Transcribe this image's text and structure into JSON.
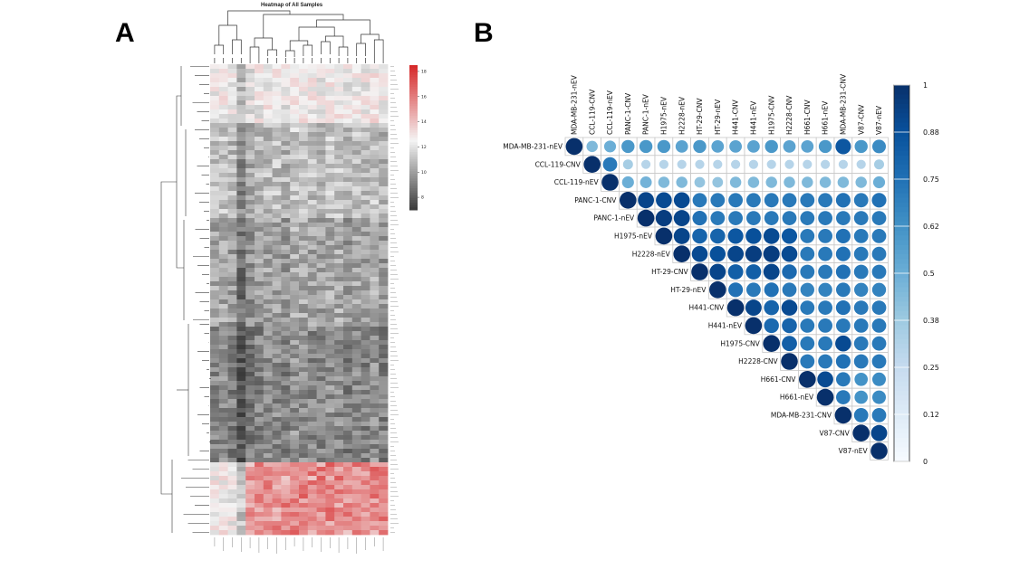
{
  "panel_labels": {
    "a": "A",
    "b": "B"
  },
  "chart_data": [
    {
      "type": "heatmap",
      "title": "Heatmap of All Samples",
      "colorbar": {
        "ticks": [
          8,
          10,
          12,
          14,
          16,
          18
        ],
        "range": [
          7,
          18.5
        ],
        "colors": {
          "low": "#3a3a3a",
          "mid": "#f4f4f4",
          "high": "#d62728"
        }
      },
      "columns": 20,
      "dendrogram": {
        "column": true,
        "row": true
      },
      "column_labels_legible": false,
      "row_labels_legible": false
    },
    {
      "type": "heatmap",
      "subtype": "correlation-upper-triangle",
      "labels": [
        "MDA-MB-231-nEV",
        "CCL-119-CNV",
        "CCL-119-nEV",
        "PANC-1-CNV",
        "PANC-1-nEV",
        "H1975-nEV",
        "H2228-nEV",
        "HT-29-CNV",
        "HT-29-nEV",
        "H441-CNV",
        "H441-nEV",
        "H1975-CNV",
        "H2228-CNV",
        "H661-CNV",
        "H661-nEV",
        "MDA-MB-231-CNV",
        "V87-CNV",
        "V87-nEV"
      ],
      "colorbar": {
        "ticks": [
          "0",
          "0.12",
          "0.25",
          "0.38",
          "0.5",
          "0.62",
          "0.75",
          "0.88",
          "1"
        ],
        "range": [
          0,
          1
        ]
      },
      "values": [
        [
          1.0,
          0.45,
          0.5,
          0.6,
          0.6,
          0.6,
          0.55,
          0.6,
          0.55,
          0.55,
          0.55,
          0.6,
          0.55,
          0.55,
          0.6,
          0.85,
          0.6,
          0.65
        ],
        [
          null,
          1.0,
          0.72,
          0.35,
          0.3,
          0.3,
          0.3,
          0.3,
          0.3,
          0.3,
          0.3,
          0.3,
          0.3,
          0.3,
          0.3,
          0.3,
          0.3,
          0.35
        ],
        [
          null,
          null,
          1.0,
          0.5,
          0.48,
          0.45,
          0.45,
          0.4,
          0.4,
          0.45,
          0.45,
          0.45,
          0.45,
          0.45,
          0.45,
          0.45,
          0.45,
          0.5
        ],
        [
          null,
          null,
          null,
          1.0,
          0.92,
          0.9,
          0.9,
          0.72,
          0.72,
          0.72,
          0.72,
          0.72,
          0.72,
          0.72,
          0.72,
          0.75,
          0.72,
          0.75
        ],
        [
          null,
          null,
          null,
          null,
          1.0,
          0.95,
          0.92,
          0.75,
          0.72,
          0.72,
          0.72,
          0.72,
          0.72,
          0.72,
          0.72,
          0.72,
          0.72,
          0.72
        ],
        [
          null,
          null,
          null,
          null,
          null,
          1.0,
          0.92,
          0.8,
          0.8,
          0.85,
          0.88,
          0.9,
          0.85,
          0.72,
          0.72,
          0.75,
          0.72,
          0.72
        ],
        [
          null,
          null,
          null,
          null,
          null,
          null,
          1.0,
          0.9,
          0.88,
          0.92,
          0.95,
          0.95,
          0.9,
          0.72,
          0.72,
          0.75,
          0.72,
          0.72
        ],
        [
          null,
          null,
          null,
          null,
          null,
          null,
          null,
          1.0,
          0.92,
          0.82,
          0.82,
          0.92,
          0.78,
          0.72,
          0.72,
          0.75,
          0.72,
          0.72
        ],
        [
          null,
          null,
          null,
          null,
          null,
          null,
          null,
          null,
          1.0,
          0.75,
          0.72,
          0.75,
          0.72,
          0.68,
          0.68,
          0.72,
          0.68,
          0.68
        ],
        [
          null,
          null,
          null,
          null,
          null,
          null,
          null,
          null,
          null,
          1.0,
          0.92,
          0.8,
          0.9,
          0.72,
          0.72,
          0.75,
          0.72,
          0.72
        ],
        [
          null,
          null,
          null,
          null,
          null,
          null,
          null,
          null,
          null,
          null,
          1.0,
          0.78,
          0.8,
          0.72,
          0.72,
          0.72,
          0.72,
          0.72
        ],
        [
          null,
          null,
          null,
          null,
          null,
          null,
          null,
          null,
          null,
          null,
          null,
          1.0,
          0.82,
          0.72,
          0.72,
          0.9,
          0.72,
          0.72
        ],
        [
          null,
          null,
          null,
          null,
          null,
          null,
          null,
          null,
          null,
          null,
          null,
          null,
          1.0,
          0.72,
          0.72,
          0.75,
          0.72,
          0.72
        ],
        [
          null,
          null,
          null,
          null,
          null,
          null,
          null,
          null,
          null,
          null,
          null,
          null,
          null,
          1.0,
          0.9,
          0.72,
          0.62,
          0.65
        ],
        [
          null,
          null,
          null,
          null,
          null,
          null,
          null,
          null,
          null,
          null,
          null,
          null,
          null,
          null,
          1.0,
          0.72,
          0.62,
          0.65
        ],
        [
          null,
          null,
          null,
          null,
          null,
          null,
          null,
          null,
          null,
          null,
          null,
          null,
          null,
          null,
          null,
          1.0,
          0.72,
          0.72
        ],
        [
          null,
          null,
          null,
          null,
          null,
          null,
          null,
          null,
          null,
          null,
          null,
          null,
          null,
          null,
          null,
          null,
          1.0,
          0.92
        ],
        [
          null,
          null,
          null,
          null,
          null,
          null,
          null,
          null,
          null,
          null,
          null,
          null,
          null,
          null,
          null,
          null,
          null,
          1.0
        ]
      ]
    }
  ]
}
